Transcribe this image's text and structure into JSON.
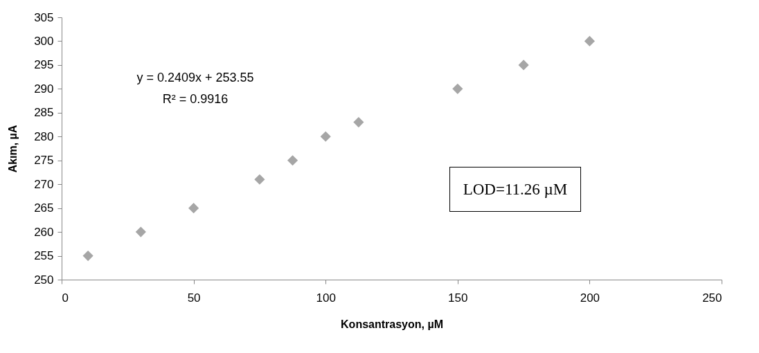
{
  "chart_data": {
    "type": "scatter",
    "xlabel": "Konsantrasyon, µM",
    "ylabel": "Akım, µA",
    "x": [
      10,
      30,
      50,
      75,
      87.5,
      100,
      112.5,
      150,
      175,
      200
    ],
    "series": [
      {
        "color": "#a6a6a6",
        "values": [
          255,
          260,
          265,
          271,
          275,
          280,
          283,
          290,
          295,
          300
        ]
      }
    ],
    "xlim": [
      0,
      250
    ],
    "xticks": [
      0,
      50,
      100,
      150,
      200,
      250
    ],
    "ylim": [
      250,
      305
    ],
    "yticks": [
      250,
      255,
      260,
      265,
      270,
      275,
      280,
      285,
      290,
      295,
      300,
      305
    ],
    "marker": "diamond",
    "annotations": [
      "y = 0.2409x + 253.55",
      "R² = 0.9916",
      "LOD=11.26 µM"
    ]
  }
}
